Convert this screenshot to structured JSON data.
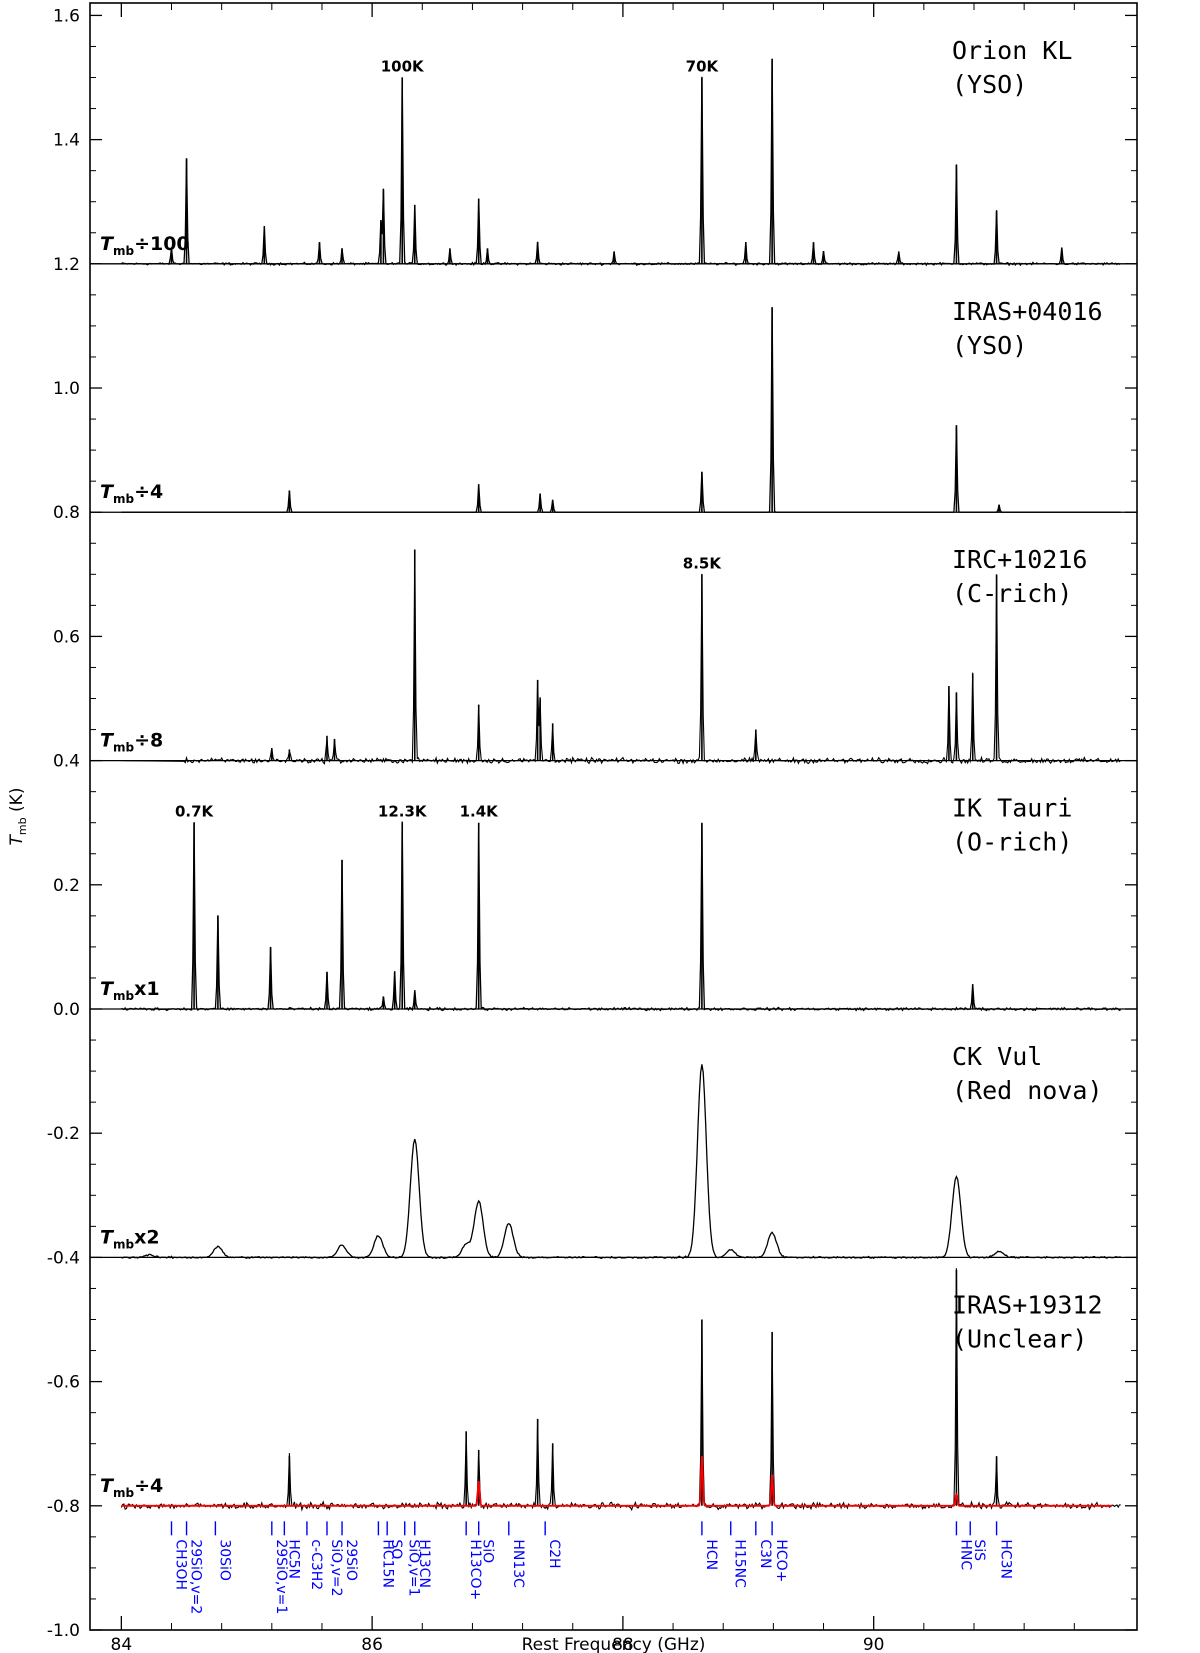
{
  "chart_data": {
    "type": "line",
    "xlabel": "Rest Frequency (GHz)",
    "ylabel": "T_mb (K)",
    "ylabel_main": "T",
    "ylabel_sub": "mb",
    "ylabel_unit": " (K)",
    "xlim": [
      83.75,
      92.1
    ],
    "ylim": [
      -1.0,
      1.62
    ],
    "x_ticks": [
      84,
      86,
      88,
      90
    ],
    "y_ticks": [
      "-1.0",
      "-0.8",
      "-0.6",
      "-0.4",
      "-0.2",
      "0.0",
      "0.2",
      "0.4",
      "0.6",
      "0.8",
      "1.0",
      "1.2",
      "1.4",
      "1.6"
    ],
    "panel_boundaries": [
      1.2,
      0.8,
      0.4,
      0.0,
      -0.4
    ],
    "series": [
      {
        "name": "Orion KL",
        "subtitle": "(YSO)",
        "scale_op": "÷100",
        "baseline": 1.2,
        "x_start": 84.0,
        "noise": 0.0025,
        "color": "#000000",
        "lines": [
          [
            84.4,
            0.025
          ],
          [
            84.52,
            0.17
          ],
          [
            85.14,
            0.06
          ],
          [
            85.58,
            0.035
          ],
          [
            85.76,
            0.025
          ],
          [
            86.07,
            0.07
          ],
          [
            86.09,
            0.12
          ],
          [
            86.24,
            0.3
          ],
          [
            86.34,
            0.095
          ],
          [
            86.62,
            0.025
          ],
          [
            86.85,
            0.105
          ],
          [
            86.92,
            0.025
          ],
          [
            87.32,
            0.035
          ],
          [
            87.93,
            0.02
          ],
          [
            88.63,
            0.3
          ],
          [
            88.98,
            0.035
          ],
          [
            89.19,
            0.33
          ],
          [
            89.52,
            0.035
          ],
          [
            89.6,
            0.02
          ],
          [
            90.2,
            0.02
          ],
          [
            90.66,
            0.16
          ],
          [
            90.98,
            0.085
          ],
          [
            91.5,
            0.025
          ]
        ],
        "peak_labels": [
          {
            "x": 86.24,
            "text": "100K"
          },
          {
            "x": 88.63,
            "text": "70K"
          }
        ]
      },
      {
        "name": "IRAS+04016",
        "subtitle": "(YSO)",
        "scale_op": "÷4",
        "baseline": 0.8,
        "x_start": 84.0,
        "noise": 0.0,
        "color": "#000000",
        "lines": [
          [
            85.34,
            0.035
          ],
          [
            86.85,
            0.045
          ],
          [
            87.34,
            0.03
          ],
          [
            87.44,
            0.02
          ],
          [
            88.63,
            0.065
          ],
          [
            89.19,
            0.33
          ],
          [
            90.66,
            0.14
          ],
          [
            91.0,
            0.012
          ]
        ],
        "peak_labels": []
      },
      {
        "name": "IRC+10216",
        "subtitle": "(C-rich)",
        "scale_op": "÷8",
        "baseline": 0.4,
        "x_start": 84.5,
        "noise": 0.006,
        "color": "#000000",
        "lines": [
          [
            85.2,
            0.02
          ],
          [
            85.34,
            0.018
          ],
          [
            85.64,
            0.04
          ],
          [
            85.7,
            0.035
          ],
          [
            86.34,
            0.34
          ],
          [
            86.85,
            0.09
          ],
          [
            87.32,
            0.13
          ],
          [
            87.34,
            0.1
          ],
          [
            87.44,
            0.06
          ],
          [
            88.63,
            0.3
          ],
          [
            89.06,
            0.05
          ],
          [
            90.6,
            0.12
          ],
          [
            90.66,
            0.11
          ],
          [
            90.79,
            0.14
          ],
          [
            90.98,
            0.3
          ]
        ],
        "peak_labels": [
          {
            "x": 88.63,
            "text": "8.5K"
          }
        ]
      },
      {
        "name": "IK Tauri",
        "subtitle": "(O-rich)",
        "scale_op": "x1",
        "baseline": 0.0,
        "x_start": 84.0,
        "noise": 0.003,
        "color": "#000000",
        "lines": [
          [
            84.58,
            0.3
          ],
          [
            84.77,
            0.15
          ],
          [
            85.19,
            0.1
          ],
          [
            85.64,
            0.06
          ],
          [
            85.76,
            0.24
          ],
          [
            86.09,
            0.02
          ],
          [
            86.18,
            0.06
          ],
          [
            86.24,
            0.3
          ],
          [
            86.34,
            0.03
          ],
          [
            86.85,
            0.3
          ],
          [
            88.63,
            0.3
          ],
          [
            90.79,
            0.04
          ]
        ],
        "peak_labels": [
          {
            "x": 84.58,
            "text": "0.7K"
          },
          {
            "x": 86.24,
            "text": "12.3K"
          },
          {
            "x": 86.85,
            "text": "1.4K"
          }
        ]
      },
      {
        "name": "CK Vul",
        "subtitle": "(Red nova)",
        "scale_op": "x2",
        "baseline": -0.4,
        "x_start": 84.0,
        "noise": 0.002,
        "color": "#000000",
        "lines": [
          [
            84.22,
            0.004
          ],
          [
            84.77,
            0.017
          ],
          [
            85.76,
            0.02
          ],
          [
            86.05,
            0.035
          ],
          [
            86.34,
            0.19
          ],
          [
            86.75,
            0.02
          ],
          [
            86.85,
            0.09
          ],
          [
            87.09,
            0.055
          ],
          [
            88.63,
            0.31
          ],
          [
            88.86,
            0.012
          ],
          [
            89.19,
            0.04
          ],
          [
            90.66,
            0.13
          ],
          [
            91.0,
            0.01
          ]
        ],
        "line_width": 0.035,
        "peak_labels": []
      },
      {
        "name": "IRAS+19312",
        "subtitle": "(Unclear)",
        "scale_op": "÷4",
        "baseline": -0.8,
        "x_start": 84.0,
        "noise": 0.007,
        "color": "#000000",
        "lines": [
          [
            85.34,
            0.08
          ],
          [
            86.75,
            0.12
          ],
          [
            86.85,
            0.09
          ],
          [
            87.32,
            0.14
          ],
          [
            87.44,
            0.1
          ],
          [
            88.63,
            0.3
          ],
          [
            89.19,
            0.28
          ],
          [
            90.66,
            0.38
          ],
          [
            90.98,
            0.08
          ]
        ],
        "fit_color": "#ff0000",
        "fit_lines": [
          [
            86.85,
            0.04
          ],
          [
            88.63,
            0.08
          ],
          [
            89.19,
            0.05
          ],
          [
            90.66,
            0.02
          ]
        ],
        "peak_labels": []
      }
    ],
    "molecule_labels": [
      {
        "x": 84.4,
        "text": "CH3OH"
      },
      {
        "x": 84.52,
        "text": "29SiO,v=2"
      },
      {
        "x": 84.75,
        "text": "30SiO"
      },
      {
        "x": 85.2,
        "text": "29SiO,v=1"
      },
      {
        "x": 85.3,
        "text": "HC5N"
      },
      {
        "x": 85.48,
        "text": "c-C3H2"
      },
      {
        "x": 85.64,
        "text": "SiO,v=2"
      },
      {
        "x": 85.76,
        "text": "29SiO"
      },
      {
        "x": 86.05,
        "text": "HC15N"
      },
      {
        "x": 86.12,
        "text": "SO"
      },
      {
        "x": 86.26,
        "text": "SiO,v=1"
      },
      {
        "x": 86.34,
        "text": "H13CN"
      },
      {
        "x": 86.75,
        "text": "H13CO+"
      },
      {
        "x": 86.85,
        "text": "SiO"
      },
      {
        "x": 87.09,
        "text": "HN13C"
      },
      {
        "x": 87.38,
        "text": "C2H"
      },
      {
        "x": 88.63,
        "text": "HCN"
      },
      {
        "x": 88.86,
        "text": "H15NC"
      },
      {
        "x": 89.06,
        "text": "C3N"
      },
      {
        "x": 89.19,
        "text": "HCO+"
      },
      {
        "x": 90.66,
        "text": "HNC"
      },
      {
        "x": 90.77,
        "text": "SiS"
      },
      {
        "x": 90.98,
        "text": "HC3N"
      }
    ]
  }
}
